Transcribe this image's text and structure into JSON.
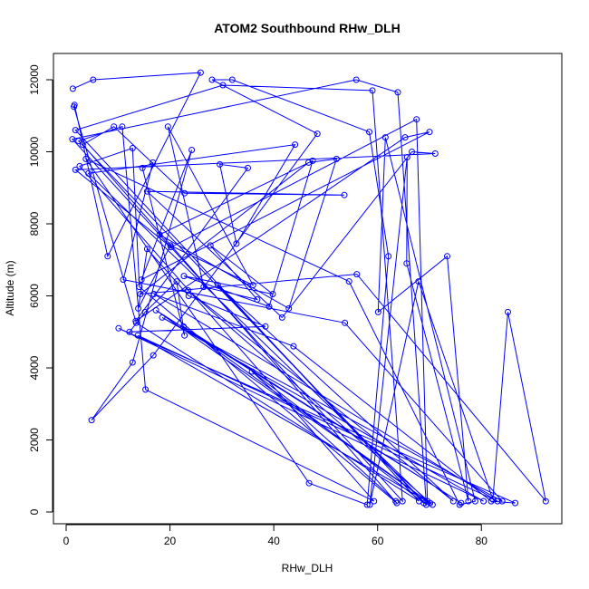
{
  "chart_data": {
    "type": "line",
    "title": "ATOM2 Southbound RHw_DLH",
    "xlabel": "RHw_DLH",
    "ylabel": "Altitude (m)",
    "xlim": [
      0,
      95
    ],
    "ylim": [
      0,
      12500
    ],
    "xticks": [
      0,
      20,
      40,
      60,
      80
    ],
    "yticks": [
      0,
      2000,
      4000,
      6000,
      8000,
      10000,
      12000
    ],
    "grid": false,
    "markers": "open-circle",
    "color": "#0000ff",
    "series": [
      {
        "points": [
          [
            1.3,
            11750
          ],
          [
            5.2,
            12000
          ],
          [
            25.9,
            12200
          ],
          [
            8.0,
            7100
          ],
          [
            1.6,
            11300
          ],
          [
            1.5,
            11250
          ],
          [
            13.5,
            5250
          ],
          [
            68.0,
            300
          ],
          [
            1.8,
            10600
          ],
          [
            30.2,
            11850
          ],
          [
            59.0,
            11700
          ],
          [
            64.8,
            300
          ],
          [
            1.2,
            10350
          ],
          [
            55.9,
            12000
          ],
          [
            63.9,
            11650
          ],
          [
            69.4,
            200
          ],
          [
            2.4,
            10300
          ],
          [
            10.8,
            10700
          ],
          [
            15.3,
            3400
          ],
          [
            59.3,
            300
          ],
          [
            2.6,
            9600
          ],
          [
            12.8,
            10100
          ],
          [
            14.1,
            6250
          ],
          [
            63.7,
            250
          ],
          [
            3.2,
            10200
          ],
          [
            9.2,
            10700
          ],
          [
            22.8,
            8850
          ],
          [
            53.6,
            8800
          ],
          [
            15.6,
            8900
          ],
          [
            41.6,
            5400
          ],
          [
            66.6,
            10000
          ],
          [
            71.1,
            9950
          ],
          [
            1.8,
            9500
          ],
          [
            20.2,
            7350
          ],
          [
            67.5,
            10900
          ],
          [
            69.6,
            300
          ],
          [
            4.3,
            9400
          ],
          [
            44.1,
            10200
          ],
          [
            32.8,
            7450
          ],
          [
            29.6,
            9650
          ],
          [
            35.0,
            9550
          ],
          [
            13.4,
            5300
          ],
          [
            65.3,
            10400
          ],
          [
            70.0,
            10550
          ],
          [
            14.5,
            6450
          ],
          [
            24.2,
            10050
          ],
          [
            12.8,
            4150
          ],
          [
            4.9,
            2550
          ],
          [
            16.8,
            4350
          ],
          [
            48.4,
            10500
          ],
          [
            28.1,
            12000
          ],
          [
            32.0,
            12000
          ],
          [
            58.4,
            10550
          ],
          [
            62.1,
            7100
          ],
          [
            58.0,
            200
          ],
          [
            46.8,
            800
          ],
          [
            3.8,
            9800
          ],
          [
            54.5,
            6400
          ],
          [
            75.8,
            200
          ],
          [
            78.8,
            300
          ],
          [
            61.5,
            10400
          ],
          [
            60.1,
            5550
          ],
          [
            73.4,
            7100
          ],
          [
            77.5,
            300
          ],
          [
            65.6,
            6900
          ],
          [
            65.7,
            9850
          ],
          [
            58.5,
            200
          ],
          [
            67.9,
            6400
          ],
          [
            82.2,
            350
          ],
          [
            85.1,
            5550
          ],
          [
            92.4,
            300
          ],
          [
            56.0,
            6600
          ],
          [
            14.3,
            6050
          ],
          [
            46.7,
            9700
          ],
          [
            52.1,
            9800
          ],
          [
            42.9,
            5650
          ],
          [
            18.0,
            7700
          ],
          [
            47.5,
            9750
          ],
          [
            39.1,
            5700
          ],
          [
            22.7,
            6550
          ],
          [
            39.8,
            6050
          ],
          [
            27.8,
            7400
          ],
          [
            36.8,
            5900
          ],
          [
            26.5,
            6250
          ],
          [
            19.6,
            10700
          ],
          [
            36.0,
            6300
          ],
          [
            20.1,
            7400
          ],
          [
            13.9,
            5650
          ],
          [
            15.6,
            7300
          ],
          [
            23.6,
            6000
          ],
          [
            38.4,
            5150
          ],
          [
            12.2,
            5000
          ],
          [
            15.2,
            5550
          ],
          [
            21.3,
            6400
          ],
          [
            22.8,
            4900
          ],
          [
            14.7,
            9550
          ],
          [
            16.7,
            9700
          ],
          [
            11.0,
            6450
          ],
          [
            53.7,
            5250
          ],
          [
            84.0,
            300
          ],
          [
            18.5,
            5400
          ],
          [
            80.4,
            300
          ],
          [
            10.1,
            5100
          ],
          [
            86.5,
            250
          ],
          [
            81.9,
            300
          ],
          [
            43.8,
            4600
          ],
          [
            16.9,
            6050
          ],
          [
            83.1,
            300
          ],
          [
            13.8,
            4900
          ],
          [
            70.1,
            250
          ],
          [
            17.3,
            5600
          ],
          [
            76.1,
            250
          ],
          [
            22.6,
            5150
          ],
          [
            70.6,
            200
          ],
          [
            23.5,
            6150
          ],
          [
            74.6,
            300
          ],
          [
            29.2,
            6300
          ],
          [
            68.9,
            250
          ],
          [
            35.8,
            3900
          ],
          [
            63.5,
            300
          ]
        ]
      }
    ]
  }
}
